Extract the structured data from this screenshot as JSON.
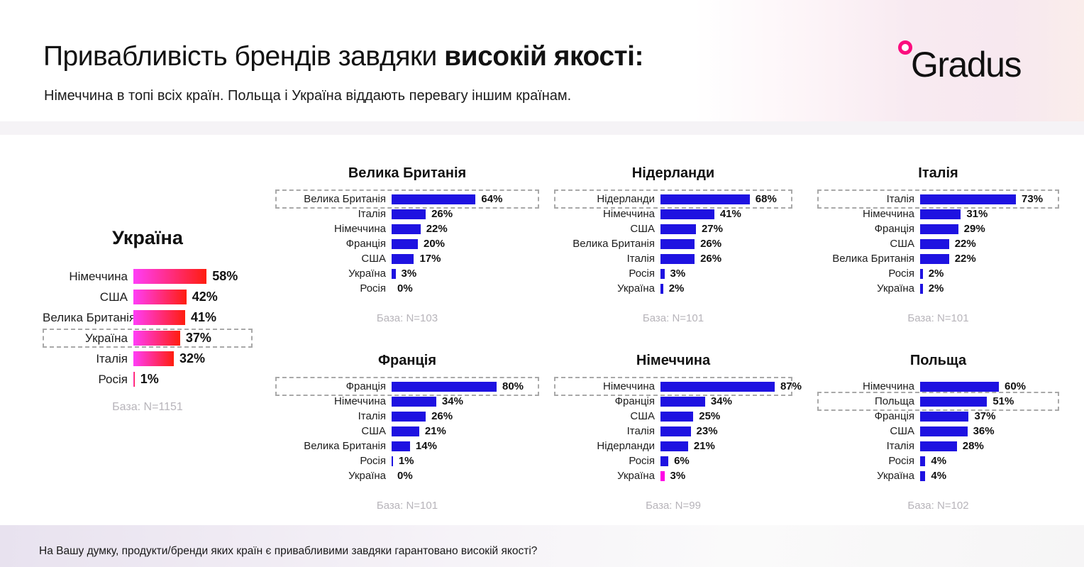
{
  "page": {
    "title_regular": "Привабливість брендів завдяки ",
    "title_bold": "високій якості:",
    "subtitle": "Німеччина в топі всіх країн. Польща і Україна віддають перевагу іншим країнам.",
    "footer_question": "На Вашу думку, продукти/бренди яких країн є привабливими завдяки гарантовано високій якості?",
    "logo_text": "Gradus"
  },
  "colors": {
    "bar_blue": "#1e12e1",
    "bar_gradient_start": "#ff3df8",
    "bar_gradient_end": "#ff1d0e",
    "bar_magenta": "#ff00e6",
    "logo_pink": "#fb0d7e",
    "base_note_gray": "#b7b4ba"
  },
  "chart_data": [
    {
      "type": "bar",
      "title": "Україна",
      "base_label": "База: N=1151",
      "unit": "%",
      "style": "gradient",
      "categories": [
        "Німеччина",
        "США",
        "Велика Британія",
        "Україна",
        "Італія",
        "Росія"
      ],
      "values": [
        58,
        42,
        41,
        37,
        32,
        1
      ],
      "highlight": "Україна"
    },
    {
      "type": "bar",
      "title": "Велика Британія",
      "base_label": "База: N=103",
      "unit": "%",
      "categories": [
        "Велика Британія",
        "Італія",
        "Німеччина",
        "Франція",
        "США",
        "Україна",
        "Росія"
      ],
      "values": [
        64,
        26,
        22,
        20,
        17,
        3,
        0
      ],
      "highlight": "Велика Британія"
    },
    {
      "type": "bar",
      "title": "Нідерланди",
      "base_label": "База: N=101",
      "unit": "%",
      "categories": [
        "Нідерланди",
        "Німеччина",
        "США",
        "Велика Британія",
        "Італія",
        "Росія",
        "Україна"
      ],
      "values": [
        68,
        41,
        27,
        26,
        26,
        3,
        2
      ],
      "highlight": "Нідерланди"
    },
    {
      "type": "bar",
      "title": "Італія",
      "base_label": "База: N=101",
      "unit": "%",
      "categories": [
        "Італія",
        "Німеччина",
        "Франція",
        "США",
        "Велика Британія",
        "Росія",
        "Україна"
      ],
      "values": [
        73,
        31,
        29,
        22,
        22,
        2,
        2
      ],
      "highlight": "Італія"
    },
    {
      "type": "bar",
      "title": "Франція",
      "base_label": "База: N=101",
      "unit": "%",
      "categories": [
        "Франція",
        "Німеччина",
        "Італія",
        "США",
        "Велика Британія",
        "Росія",
        "Україна"
      ],
      "values": [
        80,
        34,
        26,
        21,
        14,
        1,
        0
      ],
      "highlight": "Франція"
    },
    {
      "type": "bar",
      "title": "Німеччина",
      "base_label": "База: N=99",
      "unit": "%",
      "categories": [
        "Німеччина",
        "Франція",
        "США",
        "Італія",
        "Нідерланди",
        "Росія",
        "Україна"
      ],
      "values": [
        87,
        34,
        25,
        23,
        21,
        6,
        3
      ],
      "highlight": "Німеччина",
      "magenta_rows": [
        "Україна"
      ]
    },
    {
      "type": "bar",
      "title": "Польща",
      "base_label": "База: N=102",
      "unit": "%",
      "categories": [
        "Німеччина",
        "Польща",
        "Франція",
        "США",
        "Італія",
        "Росія",
        "Україна"
      ],
      "values": [
        60,
        51,
        37,
        36,
        28,
        4,
        4
      ],
      "highlight": "Польща"
    }
  ]
}
